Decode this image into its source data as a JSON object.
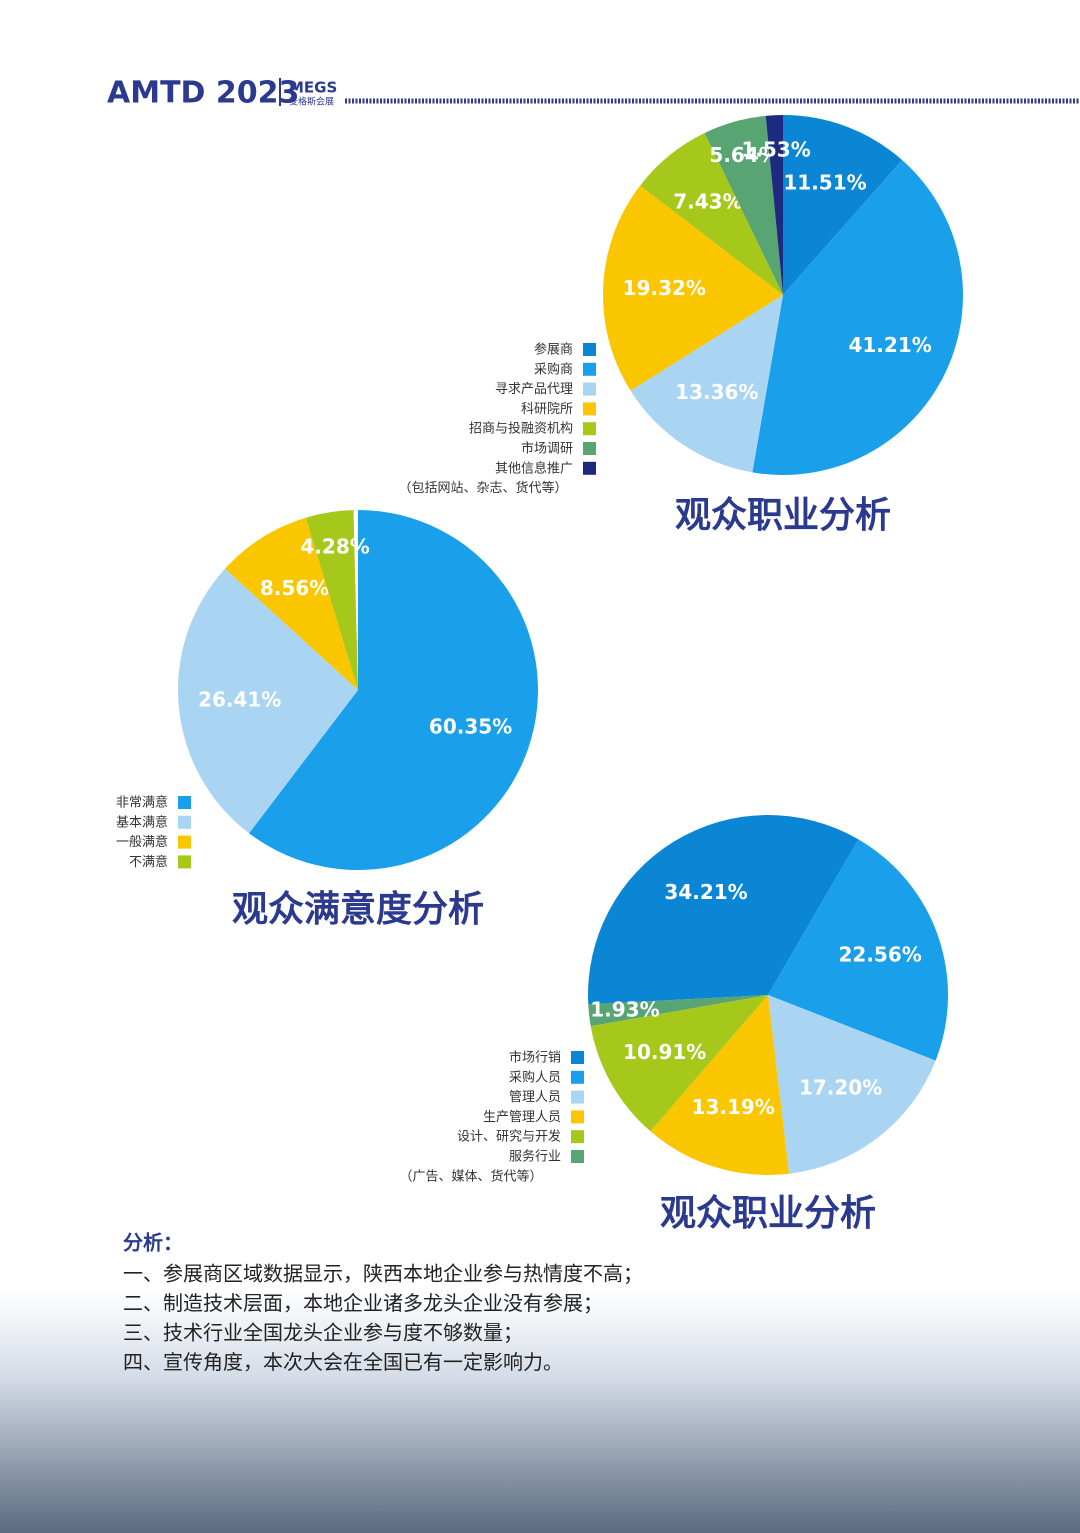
{
  "header": {
    "brand": "AMTD 2023",
    "logo": "MEGS",
    "logo_sub": "麦格斯会展"
  },
  "chart_data": [
    {
      "type": "pie",
      "title": "观众职业分析",
      "categories": [
        "参展商",
        "采购商",
        "寻求产品代理",
        "科研院所",
        "招商与投融资机构",
        "市场调研",
        "其他信息推广"
      ],
      "values": [
        11.51,
        41.21,
        13.36,
        19.32,
        7.43,
        5.64,
        1.53
      ],
      "value_labels": [
        "11.51%",
        "41.21%",
        "13.36%",
        "19.32%",
        "7.43%",
        "5.64%",
        "1.53%"
      ],
      "colors": [
        "#0b86d4",
        "#1aa0ea",
        "#a9d5f3",
        "#f9c600",
        "#a5c81b",
        "#58a472",
        "#1e2a80"
      ],
      "legend_note": "（包括网站、杂志、货代等）"
    },
    {
      "type": "pie",
      "title": "观众满意度分析",
      "categories": [
        "非常满意",
        "基本满意",
        "一般满意",
        "不满意"
      ],
      "values": [
        60.35,
        26.41,
        8.56,
        4.28
      ],
      "value_labels": [
        "60.35%",
        "26.41%",
        "8.56%",
        "4.28%"
      ],
      "colors": [
        "#1aa0ea",
        "#a9d5f3",
        "#f9c600",
        "#a5c81b"
      ]
    },
    {
      "type": "pie",
      "title": "观众职业分析",
      "categories": [
        "市场行销",
        "采购人员",
        "管理人员",
        "生产管理人员",
        "设计、研究与开发",
        "服务行业"
      ],
      "values": [
        34.21,
        22.56,
        17.2,
        13.19,
        10.91,
        1.93
      ],
      "value_labels": [
        "34.21%",
        "22.56%",
        "17.20%",
        "13.19%",
        "10.91%",
        "1.93%"
      ],
      "colors": [
        "#0b86d4",
        "#1aa0ea",
        "#a9d5f3",
        "#f9c600",
        "#a5c81b",
        "#58a472"
      ],
      "legend_note": "（广告、媒体、货代等）"
    }
  ],
  "analysis": {
    "heading": "分析：",
    "items": [
      "一、参展商区域数据显示，陕西本地企业参与热情度不高；",
      "二、制造技术层面，本地企业诸多龙头企业没有参展；",
      "三、技术行业全国龙头企业参与度不够数量；",
      "四、宣传角度，本次大会在全国已有一定影响力。"
    ]
  }
}
